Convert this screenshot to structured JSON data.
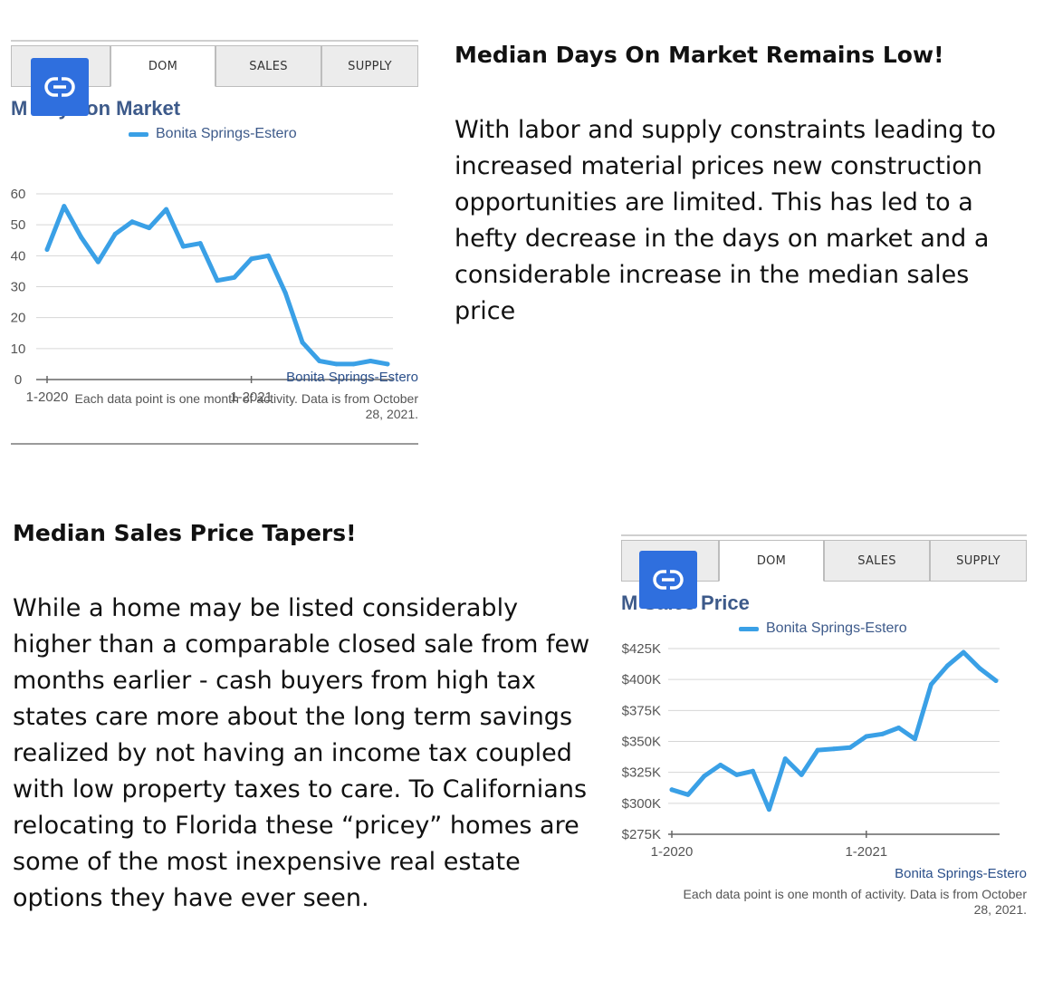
{
  "section1": {
    "heading": "Median Days On Market Remains Low!",
    "paragraph": "With labor and supply constraints leading to increased material prices new construction opportunities are limited. This has led to a hefty decrease in the days on market and a considerable increase in the median sales price"
  },
  "section2": {
    "heading": "Median Sales Price Tapers!",
    "paragraph": "While a home may be listed considerably higher than a comparable closed sale from few months earlier - cash buyers from high tax states care more about the long term savings realized by not having an income tax coupled with low property taxes to care. To Californians relocating to Florida these “pricey” homes are some of the most inexpensive real estate options they have ever seen."
  },
  "widget1": {
    "tabs": [
      "DOM",
      "SALES",
      "SUPPLY"
    ],
    "active_tab": "DOM",
    "title": "Median Days on Market",
    "title_visible": "M       Days on Market",
    "legend": "Bonita Springs-Estero",
    "source": "Bonita Springs-Estero",
    "note_line1": "Each data point is one month of activity. Data is from October",
    "note_line2": "28, 2021.",
    "link_icon": "link-icon"
  },
  "widget2": {
    "tabs": [
      "DOM",
      "SALES",
      "SUPPLY"
    ],
    "active_tab": "DOM",
    "title": "Median Sales Price",
    "title_visible": "M       Sales Price",
    "legend": "Bonita Springs-Estero",
    "source": "Bonita Springs-Estero",
    "note_line1": "Each data point is one month of activity. Data is from October",
    "note_line2": "28, 2021.",
    "link_icon": "link-icon"
  },
  "colors": {
    "line": "#3aa0e6",
    "link_button": "#2f6fde",
    "chart_text": "#3d5a8a"
  },
  "chart_data": [
    {
      "type": "line",
      "title": "Median Days on Market",
      "series": [
        {
          "name": "Bonita Springs-Estero",
          "values": [
            42,
            56,
            46,
            38,
            47,
            51,
            49,
            55,
            43,
            44,
            32,
            33,
            39,
            40,
            28,
            12,
            6,
            5,
            5,
            6,
            5
          ]
        }
      ],
      "x_tick_labels": [
        "1-2020",
        "1-2021"
      ],
      "x_tick_index": [
        0,
        12
      ],
      "yticks": [
        0,
        10,
        20,
        30,
        40,
        50,
        60
      ],
      "ylim": [
        0,
        60
      ],
      "grid": true,
      "legend_position": "top"
    },
    {
      "type": "line",
      "title": "Median Sales Price",
      "series": [
        {
          "name": "Bonita Springs-Estero",
          "values": [
            311,
            307,
            322,
            331,
            323,
            326,
            295,
            336,
            323,
            343,
            344,
            345,
            354,
            356,
            361,
            352,
            396,
            411,
            422,
            409,
            399
          ]
        }
      ],
      "unit": "$K",
      "x_tick_labels": [
        "1-2020",
        "1-2021"
      ],
      "x_tick_index": [
        0,
        12
      ],
      "yticks": [
        275,
        300,
        325,
        350,
        375,
        400,
        425
      ],
      "ytick_labels": [
        "$275K",
        "$300K",
        "$325K",
        "$350K",
        "$375K",
        "$400K",
        "$425K"
      ],
      "ylim": [
        275,
        425
      ],
      "grid": true,
      "legend_position": "top"
    }
  ]
}
